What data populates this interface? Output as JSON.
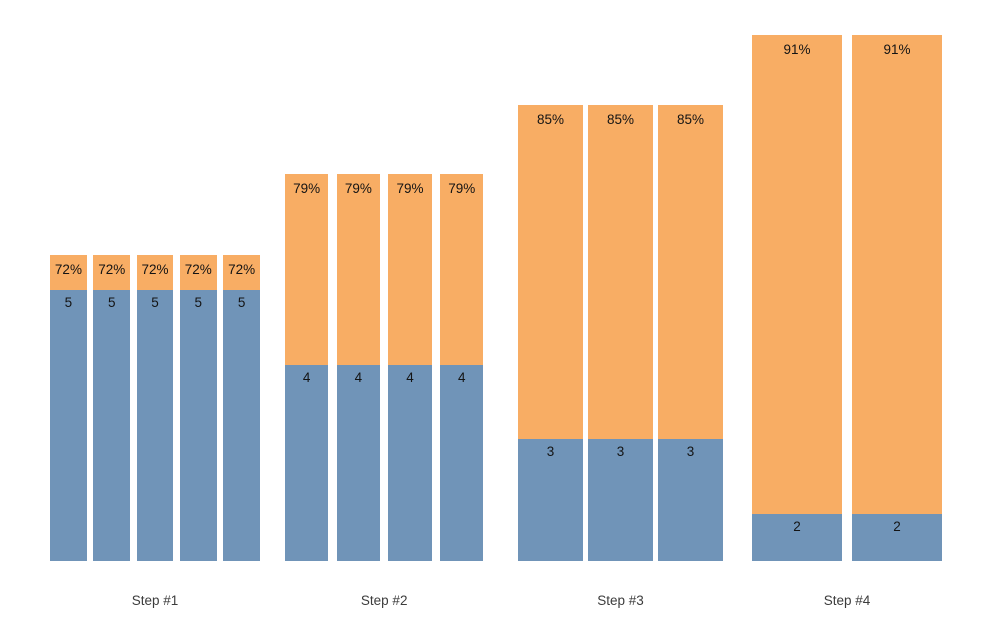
{
  "chart_data": {
    "type": "bar",
    "subtype": "grouped-stacked",
    "title": "",
    "xlabel": "",
    "ylabel": "",
    "grid": false,
    "legend": "none",
    "background": "#FFFFFF",
    "categories": [
      "Step #1",
      "Step #2",
      "Step #3",
      "Step #4"
    ],
    "bars_per_group": [
      5,
      4,
      3,
      2
    ],
    "series": [
      {
        "name": "bottom-segment",
        "role": "count",
        "values": [
          5,
          4,
          3,
          2
        ],
        "color": "#7094B8"
      },
      {
        "name": "top-segment",
        "role": "percent",
        "values": [
          72,
          79,
          85,
          91
        ],
        "color": "#F8AD64"
      }
    ],
    "text_colors": {
      "value_labels": "#141414",
      "category_labels": "#3C3C3C"
    },
    "groups": [
      {
        "label": "Step #1",
        "bars": 5,
        "count": 5,
        "count_label": "5",
        "percent": 72,
        "percent_label": "72%"
      },
      {
        "label": "Step #2",
        "bars": 4,
        "count": 4,
        "count_label": "4",
        "percent": 79,
        "percent_label": "79%"
      },
      {
        "label": "Step #3",
        "bars": 3,
        "count": 3,
        "count_label": "3",
        "percent": 85,
        "percent_label": "85%"
      },
      {
        "label": "Step #4",
        "bars": 2,
        "count": 2,
        "count_label": "2",
        "percent": 91,
        "percent_label": "91%"
      }
    ]
  }
}
